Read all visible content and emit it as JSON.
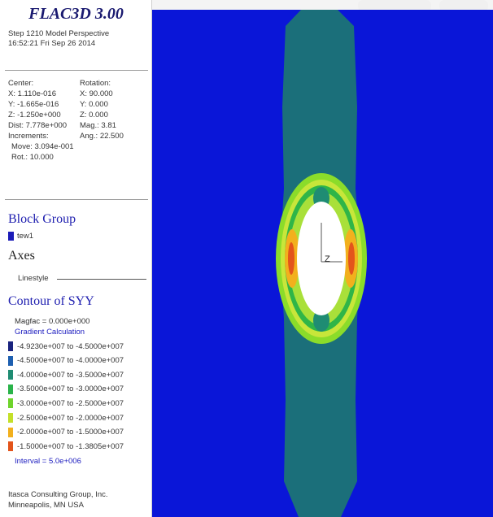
{
  "header": {
    "app_title": "FLAC3D 3.00",
    "step_line": "Step 1210  Model Perspective",
    "time_line": "16:52:21 Fri Sep 26 2014"
  },
  "view_params": {
    "center_label": "Center:",
    "rotation_label": "Rotation:",
    "center_x": "X: 1.110e-016",
    "center_y": "Y: -1.665e-016",
    "center_z": "Z: -1.250e+000",
    "rot_x": "X:  90.000",
    "rot_y": "Y:   0.000",
    "rot_z": "Z:   0.000",
    "dist": "Dist: 7.778e+000",
    "mag": "Mag.:    3.81",
    "increments": "Increments:",
    "ang": "Ang.:  22.500",
    "move": "Move: 3.094e-001",
    "rot": "Rot.:  10.000"
  },
  "block_group": {
    "title": "Block Group",
    "item_label": "tew1",
    "item_color": "#1c1cb8"
  },
  "axes": {
    "title": "Axes",
    "linestyle_label": "Linestyle"
  },
  "contour": {
    "title": "Contour of SYY",
    "magfac": "Magfac = 0.000e+000",
    "gradient": "Gradient Calculation",
    "interval": "Interval = 5.0e+006",
    "legend": [
      {
        "label": "-4.9230e+007 to -4.5000e+007",
        "color": "#1a237e"
      },
      {
        "label": "-4.5000e+007 to -4.0000e+007",
        "color": "#1d5fb0"
      },
      {
        "label": "-4.0000e+007 to -3.5000e+007",
        "color": "#1f8c73"
      },
      {
        "label": "-3.5000e+007 to -3.0000e+007",
        "color": "#2ab34a"
      },
      {
        "label": "-3.0000e+007 to -2.5000e+007",
        "color": "#6ed42c"
      },
      {
        "label": "-2.5000e+007 to -2.0000e+007",
        "color": "#c4e02a"
      },
      {
        "label": "-2.0000e+007 to -1.5000e+007",
        "color": "#f2b01d"
      },
      {
        "label": "-1.5000e+007 to -1.3805e+007",
        "color": "#e3541b"
      }
    ]
  },
  "footer": {
    "company": "Itasca Consulting Group, Inc.",
    "location": "Minneapolis, MN  USA"
  },
  "viewport": {
    "background": "#0a16d8",
    "body_color": "#1b6f7a",
    "axis_label": "Z"
  }
}
